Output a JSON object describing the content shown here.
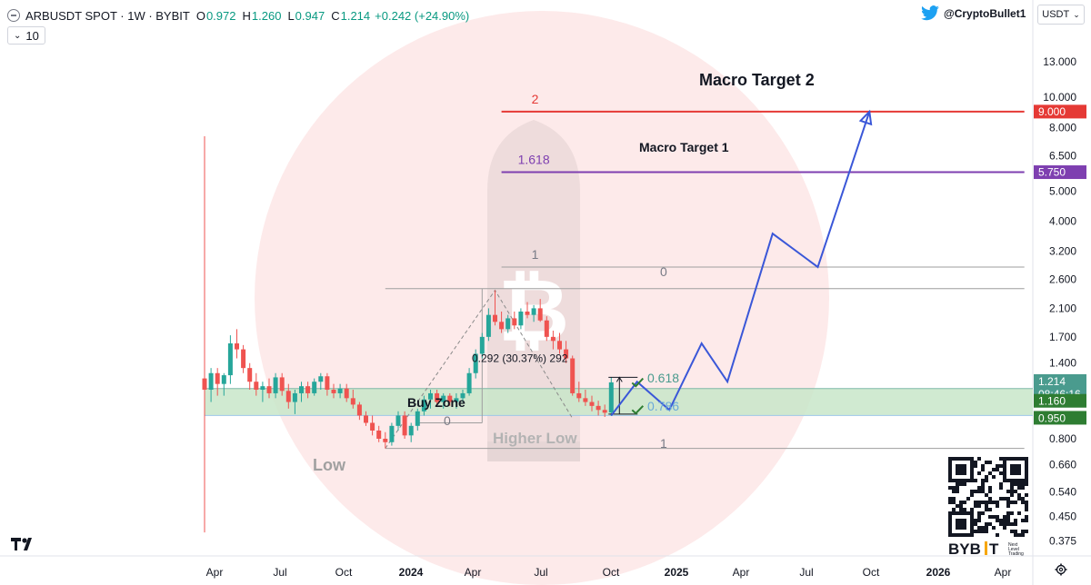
{
  "header": {
    "symbol": "ARBUSDT SPOT · 1W · BYBIT",
    "o_label": "O",
    "o_value": "0.972",
    "h_label": "H",
    "h_value": "1.260",
    "l_label": "L",
    "l_value": "0.947",
    "c_label": "C",
    "c_value": "1.214",
    "change": "+0.242 (+24.90%)",
    "volume_value": "10",
    "twitter_handle": "@CryptoBullet1",
    "currency": "USDT"
  },
  "colors": {
    "up": "#26a69a",
    "down": "#ef5350",
    "forecast": "#3a57d8",
    "target2": "#e53935",
    "target1": "#7e3fb0",
    "buy_zone": "#c8e6c9",
    "green_label": "#2e7d32",
    "price_label": "#4a9b8e"
  },
  "chart_data": {
    "type": "candlestick",
    "scale": "log",
    "ylim": [
      0.35,
      15.5
    ],
    "y_ticks": [
      "13.000",
      "10.000",
      "8.000",
      "6.500",
      "5.000",
      "4.000",
      "3.200",
      "2.600",
      "2.100",
      "1.700",
      "1.400",
      "0.800",
      "0.660",
      "0.540",
      "0.450",
      "0.375"
    ],
    "x_ticks": [
      "Apr",
      "Jul",
      "Oct",
      "2024",
      "Apr",
      "Jul",
      "Oct",
      "2025",
      "Apr",
      "Jul",
      "Oct",
      "2026",
      "Apr"
    ],
    "price_labels": {
      "target2": "9.000",
      "target1": "5.750",
      "last": "1.214",
      "countdown": "08:46:16",
      "zone_top": "1.160",
      "zone_bottom": "0.950"
    },
    "candles": [
      {
        "o": 1.25,
        "h": 7.5,
        "l": 0.4,
        "c": 1.15
      },
      {
        "o": 1.15,
        "h": 1.35,
        "l": 1.05,
        "c": 1.3
      },
      {
        "o": 1.3,
        "h": 1.35,
        "l": 1.1,
        "c": 1.2
      },
      {
        "o": 1.2,
        "h": 1.3,
        "l": 1.1,
        "c": 1.28
      },
      {
        "o": 1.28,
        "h": 1.72,
        "l": 1.2,
        "c": 1.62
      },
      {
        "o": 1.62,
        "h": 1.8,
        "l": 1.45,
        "c": 1.55
      },
      {
        "o": 1.55,
        "h": 1.6,
        "l": 1.3,
        "c": 1.35
      },
      {
        "o": 1.35,
        "h": 1.4,
        "l": 1.15,
        "c": 1.22
      },
      {
        "o": 1.22,
        "h": 1.3,
        "l": 1.1,
        "c": 1.15
      },
      {
        "o": 1.15,
        "h": 1.22,
        "l": 1.05,
        "c": 1.18
      },
      {
        "o": 1.18,
        "h": 1.25,
        "l": 1.08,
        "c": 1.12
      },
      {
        "o": 1.12,
        "h": 1.3,
        "l": 1.08,
        "c": 1.26
      },
      {
        "o": 1.26,
        "h": 1.3,
        "l": 1.1,
        "c": 1.14
      },
      {
        "o": 1.14,
        "h": 1.2,
        "l": 1.0,
        "c": 1.05
      },
      {
        "o": 1.05,
        "h": 1.15,
        "l": 0.96,
        "c": 1.12
      },
      {
        "o": 1.12,
        "h": 1.22,
        "l": 1.05,
        "c": 1.18
      },
      {
        "o": 1.18,
        "h": 1.22,
        "l": 1.08,
        "c": 1.12
      },
      {
        "o": 1.12,
        "h": 1.25,
        "l": 1.1,
        "c": 1.22
      },
      {
        "o": 1.22,
        "h": 1.3,
        "l": 1.15,
        "c": 1.27
      },
      {
        "o": 1.27,
        "h": 1.3,
        "l": 1.1,
        "c": 1.15
      },
      {
        "o": 1.15,
        "h": 1.2,
        "l": 1.08,
        "c": 1.12
      },
      {
        "o": 1.12,
        "h": 1.2,
        "l": 1.08,
        "c": 1.16
      },
      {
        "o": 1.16,
        "h": 1.2,
        "l": 1.05,
        "c": 1.08
      },
      {
        "o": 1.08,
        "h": 1.15,
        "l": 1.0,
        "c": 1.03
      },
      {
        "o": 1.03,
        "h": 1.05,
        "l": 0.92,
        "c": 0.95
      },
      {
        "o": 0.95,
        "h": 0.98,
        "l": 0.88,
        "c": 0.9
      },
      {
        "o": 0.9,
        "h": 0.95,
        "l": 0.82,
        "c": 0.85
      },
      {
        "o": 0.85,
        "h": 0.88,
        "l": 0.78,
        "c": 0.8
      },
      {
        "o": 0.8,
        "h": 0.84,
        "l": 0.745,
        "c": 0.78
      },
      {
        "o": 0.78,
        "h": 0.9,
        "l": 0.76,
        "c": 0.88
      },
      {
        "o": 0.88,
        "h": 0.98,
        "l": 0.85,
        "c": 0.95
      },
      {
        "o": 0.95,
        "h": 0.98,
        "l": 0.8,
        "c": 0.82
      },
      {
        "o": 0.82,
        "h": 0.9,
        "l": 0.78,
        "c": 0.88
      },
      {
        "o": 0.88,
        "h": 1.0,
        "l": 0.85,
        "c": 0.98
      },
      {
        "o": 0.98,
        "h": 1.1,
        "l": 0.95,
        "c": 1.07
      },
      {
        "o": 1.07,
        "h": 1.15,
        "l": 1.0,
        "c": 1.12
      },
      {
        "o": 1.12,
        "h": 1.15,
        "l": 1.02,
        "c": 1.05
      },
      {
        "o": 1.05,
        "h": 1.12,
        "l": 1.0,
        "c": 1.1
      },
      {
        "o": 1.1,
        "h": 1.12,
        "l": 1.02,
        "c": 1.05
      },
      {
        "o": 1.05,
        "h": 1.12,
        "l": 1.0,
        "c": 1.08
      },
      {
        "o": 1.08,
        "h": 1.15,
        "l": 1.05,
        "c": 1.12
      },
      {
        "o": 1.12,
        "h": 1.35,
        "l": 1.1,
        "c": 1.3
      },
      {
        "o": 1.3,
        "h": 1.55,
        "l": 1.25,
        "c": 1.5
      },
      {
        "o": 1.5,
        "h": 1.75,
        "l": 1.45,
        "c": 1.7
      },
      {
        "o": 1.7,
        "h": 2.1,
        "l": 1.65,
        "c": 2.0
      },
      {
        "o": 2.0,
        "h": 2.4,
        "l": 1.85,
        "c": 1.9
      },
      {
        "o": 1.9,
        "h": 2.05,
        "l": 1.75,
        "c": 1.8
      },
      {
        "o": 1.8,
        "h": 2.0,
        "l": 1.75,
        "c": 1.95
      },
      {
        "o": 1.95,
        "h": 2.05,
        "l": 1.8,
        "c": 1.85
      },
      {
        "o": 1.85,
        "h": 2.1,
        "l": 1.8,
        "c": 2.05
      },
      {
        "o": 2.05,
        "h": 2.2,
        "l": 1.95,
        "c": 2.0
      },
      {
        "o": 2.0,
        "h": 2.15,
        "l": 1.9,
        "c": 2.1
      },
      {
        "o": 2.1,
        "h": 2.25,
        "l": 1.9,
        "c": 1.92
      },
      {
        "o": 1.92,
        "h": 1.98,
        "l": 1.65,
        "c": 1.7
      },
      {
        "o": 1.7,
        "h": 1.78,
        "l": 1.55,
        "c": 1.65
      },
      {
        "o": 1.65,
        "h": 1.75,
        "l": 1.5,
        "c": 1.55
      },
      {
        "o": 1.55,
        "h": 1.65,
        "l": 1.4,
        "c": 1.45
      },
      {
        "o": 1.45,
        "h": 1.48,
        "l": 1.1,
        "c": 1.12
      },
      {
        "o": 1.12,
        "h": 1.22,
        "l": 1.05,
        "c": 1.08
      },
      {
        "o": 1.08,
        "h": 1.15,
        "l": 1.02,
        "c": 1.05
      },
      {
        "o": 1.05,
        "h": 1.1,
        "l": 0.98,
        "c": 1.02
      },
      {
        "o": 1.02,
        "h": 1.06,
        "l": 0.95,
        "c": 0.99
      },
      {
        "o": 0.99,
        "h": 1.03,
        "l": 0.94,
        "c": 0.97
      },
      {
        "o": 0.972,
        "h": 1.26,
        "l": 0.947,
        "c": 1.214
      }
    ],
    "forecast": [
      {
        "t": 63,
        "v": 0.95
      },
      {
        "t": 67,
        "v": 1.22
      },
      {
        "t": 72,
        "v": 0.99
      },
      {
        "t": 77,
        "v": 1.62
      },
      {
        "t": 81,
        "v": 1.22
      },
      {
        "t": 88,
        "v": 3.65
      },
      {
        "t": 95,
        "v": 2.85
      },
      {
        "t": 103,
        "v": 9.0
      }
    ],
    "levels": [
      {
        "v": 9.0,
        "label": "2",
        "color": "#e53935",
        "t0": 46,
        "t1": 127
      },
      {
        "v": 5.75,
        "label": "1.618",
        "color": "#7e3fb0",
        "t0": 46,
        "t1": 127
      },
      {
        "v": 2.85,
        "label": "1",
        "color": "#9e9e9e",
        "t0": 46,
        "t1": 127
      },
      {
        "v": 2.43,
        "label": "",
        "color": "#9e9e9e",
        "t0": 28,
        "t1": 127
      },
      {
        "v": 0.745,
        "label": "",
        "color": "#9e9e9e",
        "t0": 28,
        "t1": 127
      }
    ],
    "annotations": {
      "target2": "Macro Target 2",
      "target1": "Macro Target 1",
      "fib_0_top": "0",
      "fib_0618": "0.618",
      "fib_0786": "0.786",
      "fib_1_bottom": "1",
      "buy_zone": "Buy Zone",
      "fib_0_left": "0",
      "higher_low": "Higher Low",
      "low": "Low",
      "measure": "0.292 (30.37%) 292"
    }
  }
}
